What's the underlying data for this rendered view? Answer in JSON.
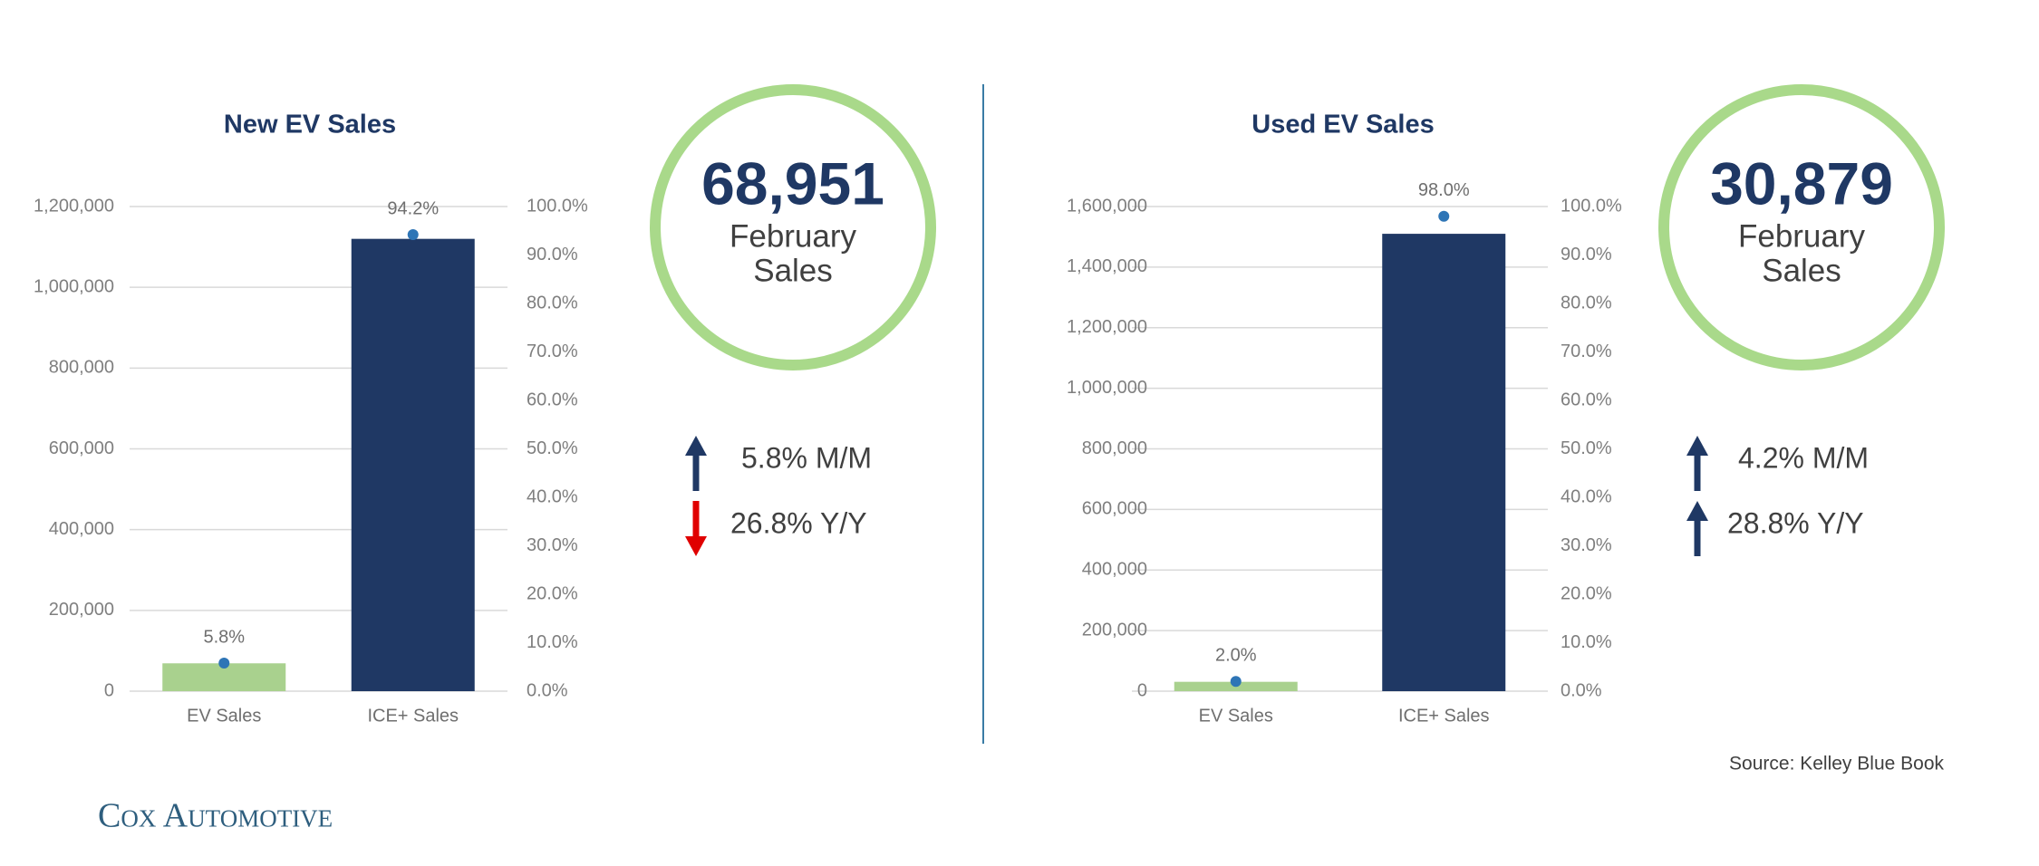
{
  "chart_data": [
    {
      "type": "bar",
      "title": "New EV Sales",
      "categories": [
        "EV Sales",
        "ICE+ Sales"
      ],
      "series": [
        {
          "type": "bar",
          "colors": [
            "#a9d18e",
            "#1f3864"
          ],
          "values": [
            68951,
            1120000
          ]
        },
        {
          "type": "scatter",
          "axis": "y2",
          "color": "#2e75b6",
          "values": [
            5.8,
            94.2
          ],
          "value_labels": [
            "5.8%",
            "94.2%"
          ]
        }
      ],
      "ylim": [
        0,
        1200000
      ],
      "yticks": [
        {
          "value": 0,
          "label": "0"
        },
        {
          "value": 200000,
          "label": "200,000"
        },
        {
          "value": 400000,
          "label": "400,000"
        },
        {
          "value": 600000,
          "label": "600,000"
        },
        {
          "value": 800000,
          "label": "800,000"
        },
        {
          "value": 1000000,
          "label": "1,000,000"
        },
        {
          "value": 1200000,
          "label": "1,200,000"
        }
      ],
      "y2lim": [
        0,
        100
      ],
      "y2ticks": [
        {
          "value": 0,
          "label": "0.0%"
        },
        {
          "value": 10,
          "label": "10.0%"
        },
        {
          "value": 20,
          "label": "20.0%"
        },
        {
          "value": 30,
          "label": "30.0%"
        },
        {
          "value": 40,
          "label": "40.0%"
        },
        {
          "value": 50,
          "label": "50.0%"
        },
        {
          "value": 60,
          "label": "60.0%"
        },
        {
          "value": 70,
          "label": "70.0%"
        },
        {
          "value": 80,
          "label": "80.0%"
        },
        {
          "value": 90,
          "label": "90.0%"
        },
        {
          "value": 100,
          "label": "100.0%"
        }
      ],
      "grid": true
    },
    {
      "type": "bar",
      "title": "Used EV Sales",
      "categories": [
        "EV Sales",
        "ICE+ Sales"
      ],
      "series": [
        {
          "type": "bar",
          "colors": [
            "#a9d18e",
            "#1f3864"
          ],
          "values": [
            30879,
            1510000
          ]
        },
        {
          "type": "scatter",
          "axis": "y2",
          "color": "#2e75b6",
          "values": [
            2.0,
            98.0
          ],
          "value_labels": [
            "2.0%",
            "98.0%"
          ]
        }
      ],
      "ylim": [
        0,
        1600000
      ],
      "yticks": [
        {
          "value": 0,
          "label": "0"
        },
        {
          "value": 200000,
          "label": "200,000"
        },
        {
          "value": 400000,
          "label": "400,000"
        },
        {
          "value": 600000,
          "label": "600,000"
        },
        {
          "value": 800000,
          "label": "800,000"
        },
        {
          "value": 1000000,
          "label": "1,000,000"
        },
        {
          "value": 1200000,
          "label": "1,200,000"
        },
        {
          "value": 1400000,
          "label": "1,400,000"
        },
        {
          "value": 1600000,
          "label": "1,600,000"
        }
      ],
      "y2lim": [
        0,
        100
      ],
      "y2ticks": [
        {
          "value": 0,
          "label": "0.0%"
        },
        {
          "value": 10,
          "label": "10.0%"
        },
        {
          "value": 20,
          "label": "20.0%"
        },
        {
          "value": 30,
          "label": "30.0%"
        },
        {
          "value": 40,
          "label": "40.0%"
        },
        {
          "value": 50,
          "label": "50.0%"
        },
        {
          "value": 60,
          "label": "60.0%"
        },
        {
          "value": 70,
          "label": "70.0%"
        },
        {
          "value": 80,
          "label": "80.0%"
        },
        {
          "value": 90,
          "label": "90.0%"
        },
        {
          "value": 100,
          "label": "100.0%"
        }
      ],
      "grid": true
    }
  ],
  "kpis": [
    {
      "value": "68,951",
      "lines": [
        "February",
        "Sales"
      ],
      "changes": [
        {
          "text": "5.8% M/M",
          "direction": "up",
          "color": "#1f3864"
        },
        {
          "text": "26.8% Y/Y",
          "direction": "down",
          "color": "#e00000"
        }
      ]
    },
    {
      "value": "30,879",
      "lines": [
        "February",
        "Sales"
      ],
      "changes": [
        {
          "text": "4.2% M/M",
          "direction": "up",
          "color": "#1f3864"
        },
        {
          "text": "28.8% Y/Y",
          "direction": "up",
          "color": "#1f3864"
        }
      ]
    }
  ],
  "source": "Source: Kelley Blue Book",
  "logo": "Cox Automotive"
}
